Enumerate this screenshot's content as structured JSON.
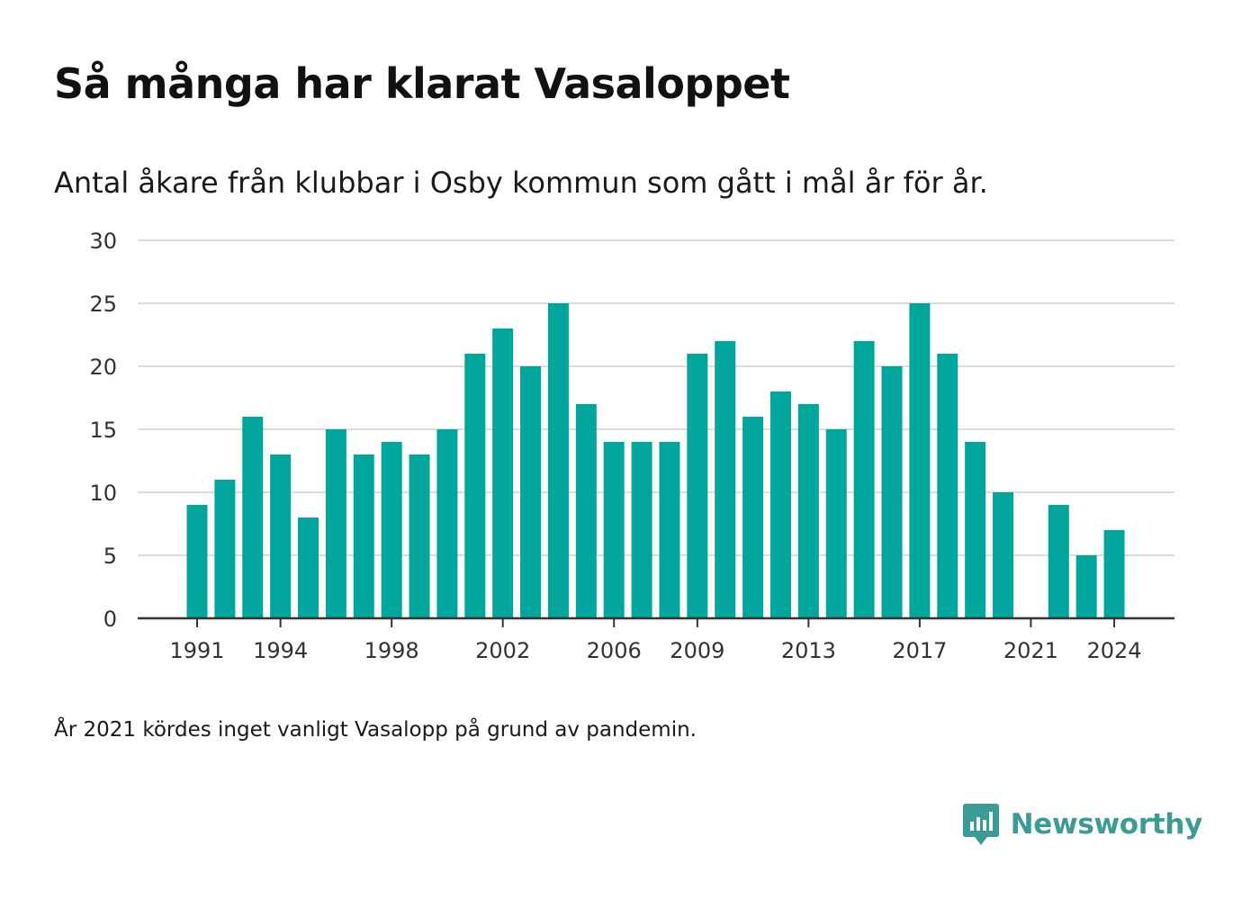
{
  "title": "Så många har klarat Vasaloppet",
  "subtitle": "Antal åkare från klubbar i Osby kommun som gått i mål år för år.",
  "note": "År 2021 kördes inget vanligt Vasalopp på grund av pandemin.",
  "brand": {
    "name": "Newsworthy",
    "logo_icon": "newsworthy-bar-chart-logo"
  },
  "colors": {
    "bar": "#00a69c",
    "grid": "#dddddd",
    "axis": "#333333",
    "brand": "#3d9b96"
  },
  "chart_data": {
    "type": "bar",
    "x": [
      1991,
      1992,
      1993,
      1994,
      1995,
      1996,
      1997,
      1998,
      1999,
      2000,
      2001,
      2002,
      2003,
      2004,
      2005,
      2006,
      2007,
      2008,
      2009,
      2010,
      2011,
      2012,
      2013,
      2014,
      2015,
      2016,
      2017,
      2018,
      2019,
      2020,
      2021,
      2022,
      2023,
      2024
    ],
    "values": [
      9,
      11,
      16,
      13,
      8,
      15,
      13,
      14,
      13,
      15,
      21,
      23,
      20,
      25,
      17,
      14,
      14,
      14,
      21,
      22,
      16,
      18,
      17,
      15,
      22,
      20,
      25,
      21,
      14,
      10,
      null,
      9,
      5,
      7
    ],
    "x_tick_labels": [
      "1991",
      "1994",
      "1998",
      "2002",
      "2006",
      "2009",
      "2013",
      "2017",
      "2021",
      "2024"
    ],
    "y_ticks": [
      0,
      5,
      10,
      15,
      20,
      25,
      30
    ],
    "ylim": [
      0,
      30
    ],
    "grid": true,
    "xlabel": "",
    "ylabel": ""
  }
}
